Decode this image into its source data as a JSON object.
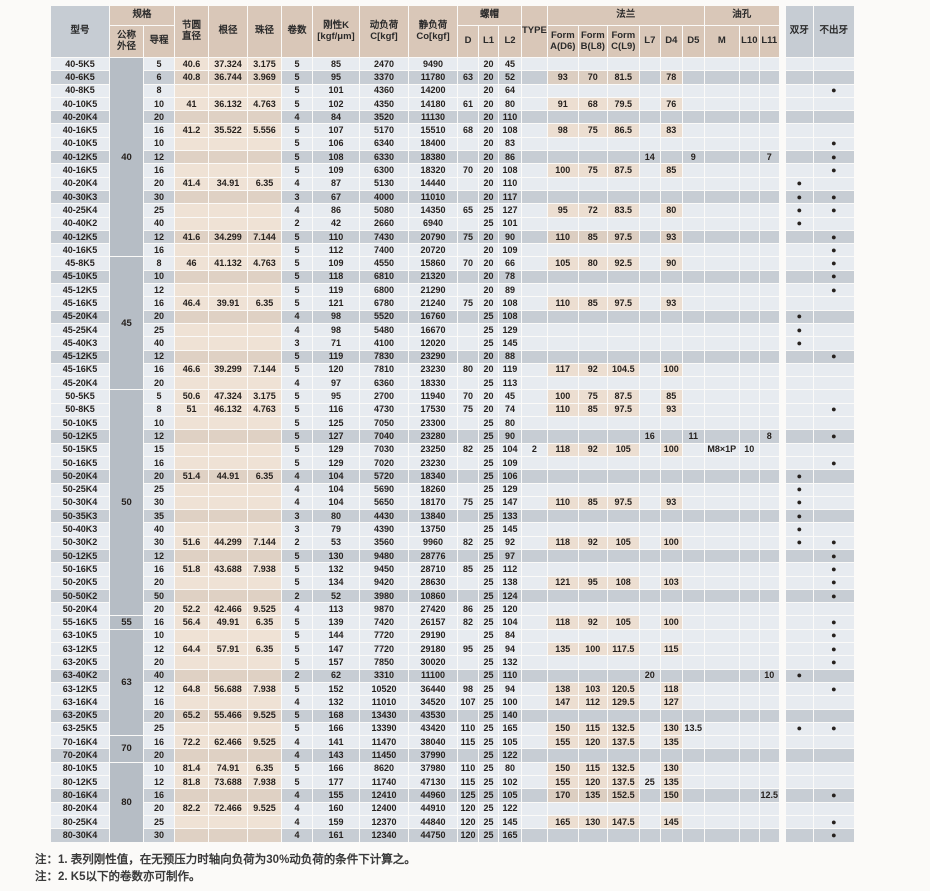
{
  "header": {
    "model": "型号",
    "spec": "规格",
    "nominal_od": "公称\n外径",
    "lead": "导程",
    "pitch_dia": "节圆\n直径",
    "root_dia": "根径",
    "ball_dia": "珠径",
    "turns": "卷数",
    "stiffness": "刚性K\n[kgf/μm]",
    "dynamic_load": "动负荷\nC[kgf]",
    "static_load": "静负荷\nCo[kgf]",
    "nut": "螺帽",
    "d": "D",
    "l1": "L1",
    "l2": "L2",
    "type": "TYPE",
    "flange": "法兰",
    "form_a": "Form\nA(D6)",
    "form_b": "Form\nB(L8)",
    "form_c": "Form\nC(L9)",
    "l7": "L7",
    "d4": "D4",
    "d5": "D5",
    "oil_hole": "油孔",
    "m": "M",
    "l10": "L10",
    "l11": "L11",
    "double_thread": "双牙",
    "no_thread_out": "不出牙"
  },
  "colors": {
    "header_tan": "#d9c7b8",
    "header_gray": "#c6ccd3",
    "row_light": "#e7ebf0",
    "row_dark": "#c7cdd4",
    "tan_light": "#efe2d5",
    "tan_dark": "#dfd1c4",
    "size_block_gray": "#b6bdc5",
    "dot": "#221d1b"
  },
  "size_blocks": [
    {
      "label": "40",
      "span": 15
    },
    {
      "label": "45",
      "span": 10
    },
    {
      "label": "50",
      "span": 17
    },
    {
      "label": "55",
      "span": 1
    },
    {
      "label": "63",
      "span": 8
    },
    {
      "label": "70",
      "span": 2
    },
    {
      "label": "80",
      "span": 6
    }
  ],
  "rows": [
    [
      "40-5K5",
      "5",
      "40.6",
      "37.324",
      "3.175",
      "5",
      "85",
      "2470",
      "9490",
      "",
      "20",
      "45",
      "",
      "",
      "",
      "",
      "",
      "",
      "",
      "",
      "",
      "",
      "",
      ""
    ],
    [
      "40-6K5",
      "6",
      "40.8",
      "36.744",
      "3.969",
      "5",
      "95",
      "3370",
      "11780",
      "63",
      "20",
      "52",
      "",
      "93",
      "70",
      "81.5",
      "",
      "78",
      "",
      "",
      "",
      "",
      "",
      ""
    ],
    [
      "40-8K5",
      "8",
      "",
      "",
      "",
      "5",
      "101",
      "4360",
      "14200",
      "",
      "20",
      "64",
      "",
      "",
      "",
      "",
      "",
      "",
      "",
      "",
      "",
      "",
      "",
      "●"
    ],
    [
      "40-10K5",
      "10",
      "41",
      "36.132",
      "4.763",
      "5",
      "102",
      "4350",
      "14180",
      "61",
      "20",
      "80",
      "",
      "91",
      "68",
      "79.5",
      "",
      "76",
      "",
      "",
      "",
      "",
      "",
      ""
    ],
    [
      "40-20K4",
      "20",
      "",
      "",
      "",
      "4",
      "84",
      "3520",
      "11130",
      "",
      "20",
      "110",
      "",
      "",
      "",
      "",
      "",
      "",
      "",
      "",
      "",
      "",
      "",
      ""
    ],
    [
      "40-16K5",
      "16",
      "41.2",
      "35.522",
      "5.556",
      "5",
      "107",
      "5170",
      "15510",
      "68",
      "20",
      "108",
      "",
      "98",
      "75",
      "86.5",
      "",
      "83",
      "",
      "",
      "",
      "",
      "",
      ""
    ],
    [
      "40-10K5",
      "10",
      "",
      "",
      "",
      "5",
      "106",
      "6340",
      "18400",
      "",
      "20",
      "83",
      "",
      "",
      "",
      "",
      "",
      "",
      "",
      "",
      "",
      "",
      "",
      "●"
    ],
    [
      "40-12K5",
      "12",
      "",
      "",
      "",
      "5",
      "108",
      "6330",
      "18380",
      "",
      "20",
      "86",
      "",
      "",
      "",
      "",
      "14",
      "",
      "9",
      "",
      "",
      "7",
      "",
      "●"
    ],
    [
      "40-16K5",
      "16",
      "",
      "",
      "",
      "5",
      "109",
      "6300",
      "18320",
      "70",
      "20",
      "108",
      "",
      "100",
      "75",
      "87.5",
      "",
      "85",
      "",
      "",
      "",
      "",
      "",
      "●"
    ],
    [
      "40-20K4",
      "20",
      "41.4",
      "34.91",
      "6.35",
      "4",
      "87",
      "5130",
      "14440",
      "",
      "20",
      "110",
      "",
      "",
      "",
      "",
      "",
      "",
      "",
      "",
      "",
      "",
      "●",
      ""
    ],
    [
      "40-30K3",
      "30",
      "",
      "",
      "",
      "3",
      "67",
      "4000",
      "11010",
      "",
      "20",
      "117",
      "",
      "",
      "",
      "",
      "",
      "",
      "",
      "",
      "",
      "",
      "●",
      "●"
    ],
    [
      "40-25K4",
      "25",
      "",
      "",
      "",
      "4",
      "86",
      "5080",
      "14350",
      "65",
      "25",
      "127",
      "",
      "95",
      "72",
      "83.5",
      "",
      "80",
      "",
      "",
      "",
      "",
      "●",
      "●"
    ],
    [
      "40-40K2",
      "40",
      "",
      "",
      "",
      "2",
      "42",
      "2660",
      "6940",
      "",
      "25",
      "101",
      "",
      "",
      "",
      "",
      "",
      "",
      "",
      "",
      "",
      "",
      "●",
      ""
    ],
    [
      "40-12K5",
      "12",
      "41.6",
      "34.299",
      "7.144",
      "5",
      "110",
      "7430",
      "20790",
      "75",
      "20",
      "90",
      "",
      "110",
      "85",
      "97.5",
      "",
      "93",
      "",
      "",
      "",
      "",
      "",
      "●"
    ],
    [
      "40-16K5",
      "16",
      "",
      "",
      "",
      "5",
      "112",
      "7400",
      "20720",
      "",
      "20",
      "109",
      "",
      "",
      "",
      "",
      "",
      "",
      "",
      "",
      "",
      "",
      "",
      "●"
    ],
    [
      "45-8K5",
      "8",
      "46",
      "41.132",
      "4.763",
      "5",
      "109",
      "4550",
      "15860",
      "70",
      "20",
      "66",
      "",
      "105",
      "80",
      "92.5",
      "",
      "90",
      "",
      "",
      "",
      "",
      "",
      "●"
    ],
    [
      "45-10K5",
      "10",
      "",
      "",
      "",
      "5",
      "118",
      "6810",
      "21320",
      "",
      "20",
      "78",
      "",
      "",
      "",
      "",
      "",
      "",
      "",
      "",
      "",
      "",
      "",
      "●"
    ],
    [
      "45-12K5",
      "12",
      "",
      "",
      "",
      "5",
      "119",
      "6800",
      "21290",
      "",
      "20",
      "89",
      "",
      "",
      "",
      "",
      "",
      "",
      "",
      "",
      "",
      "",
      "",
      "●"
    ],
    [
      "45-16K5",
      "16",
      "46.4",
      "39.91",
      "6.35",
      "5",
      "121",
      "6780",
      "21240",
      "75",
      "20",
      "108",
      "",
      "110",
      "85",
      "97.5",
      "",
      "93",
      "",
      "",
      "",
      "",
      "",
      ""
    ],
    [
      "45-20K4",
      "20",
      "",
      "",
      "",
      "4",
      "98",
      "5520",
      "16760",
      "",
      "25",
      "108",
      "",
      "",
      "",
      "",
      "",
      "",
      "",
      "",
      "",
      "",
      "●",
      ""
    ],
    [
      "45-25K4",
      "25",
      "",
      "",
      "",
      "4",
      "98",
      "5480",
      "16670",
      "",
      "25",
      "129",
      "",
      "",
      "",
      "",
      "",
      "",
      "",
      "",
      "",
      "",
      "●",
      ""
    ],
    [
      "45-40K3",
      "40",
      "",
      "",
      "",
      "3",
      "71",
      "4100",
      "12020",
      "",
      "25",
      "145",
      "",
      "",
      "",
      "",
      "",
      "",
      "",
      "",
      "",
      "",
      "●",
      ""
    ],
    [
      "45-12K5",
      "12",
      "",
      "",
      "",
      "5",
      "119",
      "7830",
      "23290",
      "",
      "20",
      "88",
      "",
      "",
      "",
      "",
      "",
      "",
      "",
      "",
      "",
      "",
      "",
      "●"
    ],
    [
      "45-16K5",
      "16",
      "46.6",
      "39.299",
      "7.144",
      "5",
      "120",
      "7810",
      "23230",
      "80",
      "20",
      "119",
      "",
      "117",
      "92",
      "104.5",
      "",
      "100",
      "",
      "",
      "",
      "",
      "",
      ""
    ],
    [
      "45-20K4",
      "20",
      "",
      "",
      "",
      "4",
      "97",
      "6360",
      "18330",
      "",
      "25",
      "113",
      "",
      "",
      "",
      "",
      "",
      "",
      "",
      "",
      "",
      "",
      "",
      ""
    ],
    [
      "50-5K5",
      "5",
      "50.6",
      "47.324",
      "3.175",
      "5",
      "95",
      "2700",
      "11940",
      "70",
      "20",
      "45",
      "",
      "100",
      "75",
      "87.5",
      "",
      "85",
      "",
      "",
      "",
      "",
      "",
      ""
    ],
    [
      "50-8K5",
      "8",
      "51",
      "46.132",
      "4.763",
      "5",
      "116",
      "4730",
      "17530",
      "75",
      "20",
      "74",
      "",
      "110",
      "85",
      "97.5",
      "",
      "93",
      "",
      "",
      "",
      "",
      "",
      "●"
    ],
    [
      "50-10K5",
      "10",
      "",
      "",
      "",
      "5",
      "125",
      "7050",
      "23300",
      "",
      "25",
      "80",
      "",
      "",
      "",
      "",
      "",
      "",
      "",
      "",
      "",
      "",
      "",
      ""
    ],
    [
      "50-12K5",
      "12",
      "",
      "",
      "",
      "5",
      "127",
      "7040",
      "23280",
      "",
      "25",
      "90",
      "",
      "",
      "",
      "",
      "16",
      "",
      "11",
      "",
      "",
      "8",
      "",
      "●"
    ],
    [
      "50-15K5",
      "15",
      "",
      "",
      "",
      "5",
      "129",
      "7030",
      "23250",
      "82",
      "25",
      "104",
      "2",
      "118",
      "92",
      "105",
      "",
      "100",
      "",
      "M8×1P",
      "10",
      "",
      "",
      ""
    ],
    [
      "50-16K5",
      "16",
      "",
      "",
      "",
      "5",
      "129",
      "7020",
      "23230",
      "",
      "25",
      "109",
      "",
      "",
      "",
      "",
      "",
      "",
      "",
      "",
      "",
      "",
      "",
      "●"
    ],
    [
      "50-20K4",
      "20",
      "51.4",
      "44.91",
      "6.35",
      "4",
      "104",
      "5720",
      "18340",
      "",
      "25",
      "106",
      "",
      "",
      "",
      "",
      "",
      "",
      "",
      "",
      "",
      "",
      "●",
      ""
    ],
    [
      "50-25K4",
      "25",
      "",
      "",
      "",
      "4",
      "104",
      "5690",
      "18260",
      "",
      "25",
      "129",
      "",
      "",
      "",
      "",
      "",
      "",
      "",
      "",
      "",
      "",
      "●",
      ""
    ],
    [
      "50-30K4",
      "30",
      "",
      "",
      "",
      "4",
      "104",
      "5650",
      "18170",
      "75",
      "25",
      "147",
      "",
      "110",
      "85",
      "97.5",
      "",
      "93",
      "",
      "",
      "",
      "",
      "●",
      ""
    ],
    [
      "50-35K3",
      "35",
      "",
      "",
      "",
      "3",
      "80",
      "4430",
      "13840",
      "",
      "25",
      "133",
      "",
      "",
      "",
      "",
      "",
      "",
      "",
      "",
      "",
      "",
      "●",
      ""
    ],
    [
      "50-40K3",
      "40",
      "",
      "",
      "",
      "3",
      "79",
      "4390",
      "13750",
      "",
      "25",
      "145",
      "",
      "",
      "",
      "",
      "",
      "",
      "",
      "",
      "",
      "",
      "●",
      ""
    ],
    [
      "50-30K2",
      "30",
      "51.6",
      "44.299",
      "7.144",
      "2",
      "53",
      "3560",
      "9960",
      "82",
      "25",
      "92",
      "",
      "118",
      "92",
      "105",
      "",
      "100",
      "",
      "",
      "",
      "",
      "●",
      "●"
    ],
    [
      "50-12K5",
      "12",
      "",
      "",
      "",
      "5",
      "130",
      "9480",
      "28776",
      "",
      "25",
      "97",
      "",
      "",
      "",
      "",
      "",
      "",
      "",
      "",
      "",
      "",
      "",
      "●"
    ],
    [
      "50-16K5",
      "16",
      "51.8",
      "43.688",
      "7.938",
      "5",
      "132",
      "9450",
      "28710",
      "85",
      "25",
      "112",
      "",
      "",
      "",
      "",
      "",
      "",
      "",
      "",
      "",
      "",
      "",
      "●"
    ],
    [
      "50-20K5",
      "20",
      "",
      "",
      "",
      "5",
      "134",
      "9420",
      "28630",
      "",
      "25",
      "138",
      "",
      "121",
      "95",
      "108",
      "",
      "103",
      "",
      "",
      "",
      "",
      "",
      "●"
    ],
    [
      "50-50K2",
      "50",
      "",
      "",
      "",
      "2",
      "52",
      "3980",
      "10860",
      "",
      "25",
      "124",
      "",
      "",
      "",
      "",
      "",
      "",
      "",
      "",
      "",
      "",
      "",
      "●"
    ],
    [
      "50-20K4",
      "20",
      "52.2",
      "42.466",
      "9.525",
      "4",
      "113",
      "9870",
      "27420",
      "86",
      "25",
      "120",
      "",
      "",
      "",
      "",
      "",
      "",
      "",
      "",
      "",
      "",
      "",
      ""
    ],
    [
      "55-16K5",
      "16",
      "56.4",
      "49.91",
      "6.35",
      "5",
      "139",
      "7420",
      "26157",
      "82",
      "25",
      "104",
      "",
      "118",
      "92",
      "105",
      "",
      "100",
      "",
      "",
      "",
      "",
      "",
      "●"
    ],
    [
      "63-10K5",
      "10",
      "",
      "",
      "",
      "5",
      "144",
      "7720",
      "29190",
      "",
      "25",
      "84",
      "",
      "",
      "",
      "",
      "",
      "",
      "",
      "",
      "",
      "",
      "",
      "●"
    ],
    [
      "63-12K5",
      "12",
      "64.4",
      "57.91",
      "6.35",
      "5",
      "147",
      "7720",
      "29180",
      "95",
      "25",
      "94",
      "",
      "135",
      "100",
      "117.5",
      "",
      "115",
      "",
      "",
      "",
      "",
      "",
      "●"
    ],
    [
      "63-20K5",
      "20",
      "",
      "",
      "",
      "5",
      "157",
      "7850",
      "30020",
      "",
      "25",
      "132",
      "",
      "",
      "",
      "",
      "",
      "",
      "",
      "",
      "",
      "",
      "",
      "●"
    ],
    [
      "63-40K2",
      "40",
      "",
      "",
      "",
      "2",
      "62",
      "3310",
      "11100",
      "",
      "25",
      "110",
      "",
      "",
      "",
      "",
      "20",
      "",
      "",
      "",
      "",
      "10",
      "●",
      ""
    ],
    [
      "63-12K5",
      "12",
      "64.8",
      "56.688",
      "7.938",
      "5",
      "152",
      "10520",
      "36440",
      "98",
      "25",
      "94",
      "",
      "138",
      "103",
      "120.5",
      "",
      "118",
      "",
      "",
      "",
      "",
      "",
      "●"
    ],
    [
      "63-16K4",
      "16",
      "",
      "",
      "",
      "4",
      "132",
      "11010",
      "34520",
      "107",
      "25",
      "100",
      "",
      "147",
      "112",
      "129.5",
      "",
      "127",
      "",
      "",
      "",
      "",
      "",
      ""
    ],
    [
      "63-20K5",
      "20",
      "65.2",
      "55.466",
      "9.525",
      "5",
      "168",
      "13430",
      "43530",
      "",
      "25",
      "140",
      "",
      "",
      "",
      "",
      "",
      "",
      "",
      "",
      "",
      "",
      "",
      ""
    ],
    [
      "63-25K5",
      "25",
      "",
      "",
      "",
      "5",
      "166",
      "13390",
      "43420",
      "110",
      "25",
      "165",
      "",
      "150",
      "115",
      "132.5",
      "",
      "130",
      "13.5",
      "",
      "",
      "",
      "●",
      "●"
    ],
    [
      "70-16K4",
      "16",
      "72.2",
      "62.466",
      "9.525",
      "4",
      "141",
      "11470",
      "38040",
      "115",
      "25",
      "105",
      "",
      "155",
      "120",
      "137.5",
      "",
      "135",
      "",
      "",
      "",
      "",
      "",
      ""
    ],
    [
      "70-20K4",
      "20",
      "",
      "",
      "",
      "4",
      "143",
      "11450",
      "37990",
      "",
      "25",
      "122",
      "",
      "",
      "",
      "",
      "",
      "",
      "",
      "",
      "",
      "",
      "",
      ""
    ],
    [
      "80-10K5",
      "10",
      "81.4",
      "74.91",
      "6.35",
      "5",
      "166",
      "8620",
      "37980",
      "110",
      "25",
      "80",
      "",
      "150",
      "115",
      "132.5",
      "",
      "130",
      "",
      "",
      "",
      "",
      "",
      ""
    ],
    [
      "80-12K5",
      "12",
      "81.8",
      "73.688",
      "7.938",
      "5",
      "177",
      "11740",
      "47130",
      "115",
      "25",
      "102",
      "",
      "155",
      "120",
      "137.5",
      "25",
      "135",
      "",
      "",
      "",
      "",
      "",
      ""
    ],
    [
      "80-16K4",
      "16",
      "",
      "",
      "",
      "4",
      "155",
      "12410",
      "44960",
      "125",
      "25",
      "105",
      "",
      "170",
      "135",
      "152.5",
      "",
      "150",
      "",
      "",
      "",
      "12.5",
      "",
      "●"
    ],
    [
      "80-20K4",
      "20",
      "82.2",
      "72.466",
      "9.525",
      "4",
      "160",
      "12400",
      "44910",
      "120",
      "25",
      "122",
      "",
      "",
      "",
      "",
      "",
      "",
      "",
      "",
      "",
      "",
      "",
      ""
    ],
    [
      "80-25K4",
      "25",
      "",
      "",
      "",
      "4",
      "159",
      "12370",
      "44840",
      "120",
      "25",
      "145",
      "",
      "165",
      "130",
      "147.5",
      "",
      "145",
      "",
      "",
      "",
      "",
      "",
      "●"
    ],
    [
      "80-30K4",
      "30",
      "",
      "",
      "",
      "4",
      "161",
      "12340",
      "44750",
      "120",
      "25",
      "165",
      "",
      "",
      "",
      "",
      "",
      "",
      "",
      "",
      "",
      "",
      "",
      "●"
    ]
  ],
  "notes": [
    "注：1. 表列刚性值，在无预压力时轴向负荷为30%动负荷的条件下计算之。",
    "注：2. K5以下的卷数亦可制作。"
  ]
}
